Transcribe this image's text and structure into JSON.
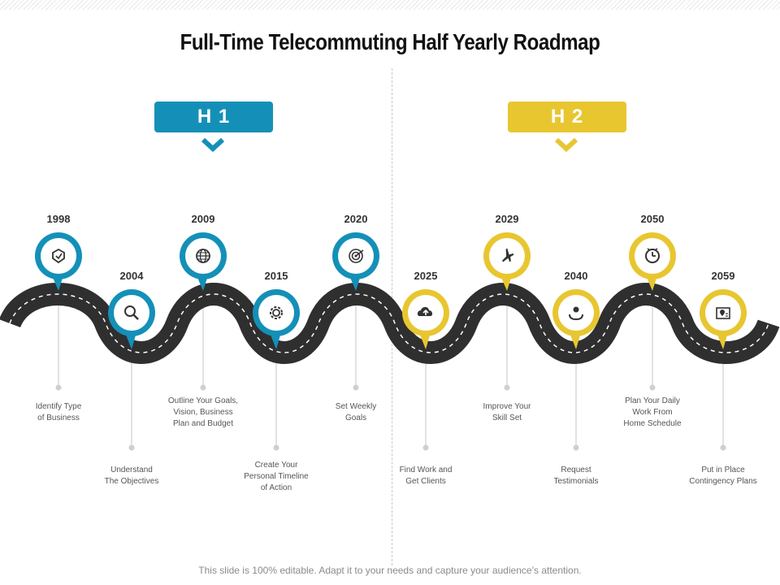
{
  "title": "Full-Time Telecommuting Half Yearly Roadmap",
  "colors": {
    "blue": "#1490b8",
    "yellow": "#e8c630",
    "road": "#2f2f2f",
    "connector": "#cfcfcf"
  },
  "halves": [
    {
      "label": "H 1",
      "color": "#1490b8"
    },
    {
      "label": "H 2",
      "color": "#e8c630"
    }
  ],
  "milestones": [
    {
      "year": "1998",
      "icon": "shield-icon",
      "text": [
        "Identify Type",
        "of Business"
      ],
      "color": "blue"
    },
    {
      "year": "2004",
      "icon": "magnifier-icon",
      "text": [
        "Understand",
        "The Objectives"
      ],
      "color": "blue"
    },
    {
      "year": "2009",
      "icon": "globe-icon",
      "text": [
        "Outline Your Goals,",
        "Vision, Business",
        "Plan and Budget"
      ],
      "color": "blue"
    },
    {
      "year": "2015",
      "icon": "gear-icon",
      "text": [
        "Create Your",
        "Personal Timeline",
        "of Action"
      ],
      "color": "blue"
    },
    {
      "year": "2020",
      "icon": "target-icon",
      "text": [
        "Set Weekly",
        "Goals"
      ],
      "color": "blue"
    },
    {
      "year": "2025",
      "icon": "cloud-upload-icon",
      "text": [
        "Find Work and",
        "Get Clients"
      ],
      "color": "yellow"
    },
    {
      "year": "2029",
      "icon": "airplane-icon",
      "text": [
        "Improve Your",
        "Skill Set"
      ],
      "color": "yellow"
    },
    {
      "year": "2040",
      "icon": "hand-care-icon",
      "text": [
        "Request",
        "Testimonials"
      ],
      "color": "yellow"
    },
    {
      "year": "2050",
      "icon": "clock-icon",
      "text": [
        "Plan Your Daily",
        "Work From",
        "Home Schedule"
      ],
      "color": "yellow"
    },
    {
      "year": "2059",
      "icon": "shop-location-icon",
      "text": [
        "Put in Place",
        "Contingency Plans"
      ],
      "color": "yellow"
    }
  ],
  "footer": "This slide is 100% editable. Adapt it to your needs and capture your audience’s attention."
}
